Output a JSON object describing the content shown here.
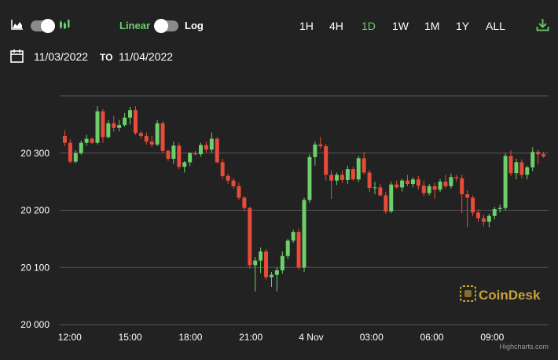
{
  "toolbar": {
    "chart_type_line_icon": "area-chart-icon",
    "chart_type_candle_icon": "candlestick-icon",
    "scale_linear_label": "Linear",
    "scale_log_label": "Log",
    "scale_selected": "Linear",
    "ranges": [
      "1H",
      "4H",
      "1D",
      "1W",
      "1M",
      "1Y",
      "ALL"
    ],
    "range_selected": "1D",
    "download_icon": "download-icon"
  },
  "date_range": {
    "calendar_icon": "calendar-icon",
    "from": "11/03/2022",
    "to_label": "TO",
    "to": "11/04/2022"
  },
  "colors": {
    "background": "#222222",
    "up": "#6ccf6a",
    "down": "#e84b3a",
    "active": "#6ccf6a",
    "grid": "#555555",
    "watermark": "#c9a13b"
  },
  "watermark": {
    "text": "CoinDesk"
  },
  "credits": "Highcharts.com",
  "chart_data": {
    "type": "candlestick",
    "y_ticks": [
      {
        "value": 20000,
        "label": "20 000"
      },
      {
        "value": 20100,
        "label": "20 100"
      },
      {
        "value": 20200,
        "label": "20 200"
      },
      {
        "value": 20300,
        "label": "20 300"
      }
    ],
    "ylim": [
      20000,
      20400
    ],
    "x_ticks": [
      {
        "value": 12,
        "label": "12:00"
      },
      {
        "value": 15,
        "label": "15:00"
      },
      {
        "value": 18,
        "label": "18:00"
      },
      {
        "value": 21,
        "label": "21:00"
      },
      {
        "value": 24,
        "label": "4 Nov"
      },
      {
        "value": 27,
        "label": "03:00"
      },
      {
        "value": 30,
        "label": "06:00"
      },
      {
        "value": 33,
        "label": "09:00"
      }
    ],
    "xlim": [
      11.5,
      35.8
    ],
    "grid": true,
    "candles": [
      [
        20330,
        20340,
        20312,
        20318
      ],
      [
        20318,
        20324,
        20282,
        20285
      ],
      [
        20285,
        20305,
        20282,
        20300
      ],
      [
        20300,
        20322,
        20297,
        20318
      ],
      [
        20318,
        20332,
        20313,
        20325
      ],
      [
        20325,
        20328,
        20316,
        20318
      ],
      [
        20318,
        20382,
        20315,
        20373
      ],
      [
        20373,
        20377,
        20318,
        20328
      ],
      [
        20328,
        20358,
        20325,
        20352
      ],
      [
        20352,
        20365,
        20337,
        20344
      ],
      [
        20344,
        20358,
        20338,
        20349
      ],
      [
        20349,
        20370,
        20346,
        20362
      ],
      [
        20362,
        20381,
        20350,
        20375
      ],
      [
        20375,
        20382,
        20332,
        20335
      ],
      [
        20335,
        20338,
        20325,
        20330
      ],
      [
        20330,
        20336,
        20315,
        20320
      ],
      [
        20320,
        20330,
        20310,
        20315
      ],
      [
        20315,
        20358,
        20312,
        20352
      ],
      [
        20352,
        20356,
        20300,
        20304
      ],
      [
        20304,
        20306,
        20286,
        20290
      ],
      [
        20290,
        20320,
        20281,
        20313
      ],
      [
        20313,
        20318,
        20272,
        20276
      ],
      [
        20276,
        20286,
        20266,
        20284
      ],
      [
        20284,
        20302,
        20277,
        20300
      ],
      [
        20300,
        20304,
        20296,
        20298
      ],
      [
        20298,
        20318,
        20294,
        20314
      ],
      [
        20314,
        20320,
        20301,
        20306
      ],
      [
        20306,
        20336,
        20300,
        20325
      ],
      [
        20325,
        20328,
        20282,
        20284
      ],
      [
        20284,
        20290,
        20255,
        20260
      ],
      [
        20260,
        20264,
        20246,
        20252
      ],
      [
        20252,
        20256,
        20238,
        20242
      ],
      [
        20242,
        20248,
        20218,
        20222
      ],
      [
        20222,
        20225,
        20198,
        20204
      ],
      [
        20204,
        20206,
        20098,
        20104
      ],
      [
        20104,
        20118,
        20058,
        20112
      ],
      [
        20112,
        20135,
        20090,
        20128
      ],
      [
        20128,
        20132,
        20079,
        20083
      ],
      [
        20083,
        20092,
        20066,
        20087
      ],
      [
        20087,
        20100,
        20058,
        20095
      ],
      [
        20095,
        20128,
        20089,
        20120
      ],
      [
        20120,
        20150,
        20115,
        20147
      ],
      [
        20147,
        20166,
        20143,
        20162
      ],
      [
        20162,
        20168,
        20096,
        20100
      ],
      [
        20100,
        20222,
        20092,
        20218
      ],
      [
        20218,
        20298,
        20213,
        20293
      ],
      [
        20293,
        20320,
        20278,
        20315
      ],
      [
        20315,
        20328,
        20308,
        20312
      ],
      [
        20312,
        20316,
        20252,
        20262
      ],
      [
        20262,
        20270,
        20220,
        20252
      ],
      [
        20252,
        20266,
        20244,
        20262
      ],
      [
        20262,
        20270,
        20248,
        20253
      ],
      [
        20253,
        20278,
        20246,
        20272
      ],
      [
        20272,
        20276,
        20252,
        20254
      ],
      [
        20254,
        20295,
        20249,
        20291
      ],
      [
        20291,
        20302,
        20262,
        20266
      ],
      [
        20266,
        20271,
        20232,
        20239
      ],
      [
        20239,
        20250,
        20228,
        20240
      ],
      [
        20240,
        20246,
        20224,
        20226
      ],
      [
        20226,
        20232,
        20194,
        20198
      ],
      [
        20198,
        20250,
        20195,
        20245
      ],
      [
        20245,
        20252,
        20238,
        20240
      ],
      [
        20240,
        20255,
        20233,
        20252
      ],
      [
        20252,
        20262,
        20242,
        20246
      ],
      [
        20246,
        20258,
        20240,
        20254
      ],
      [
        20254,
        20260,
        20236,
        20243
      ],
      [
        20243,
        20252,
        20225,
        20230
      ],
      [
        20230,
        20246,
        20226,
        20242
      ],
      [
        20242,
        20248,
        20220,
        20236
      ],
      [
        20236,
        20255,
        20232,
        20250
      ],
      [
        20250,
        20262,
        20238,
        20242
      ],
      [
        20242,
        20264,
        20238,
        20258
      ],
      [
        20258,
        20262,
        20250,
        20256
      ],
      [
        20256,
        20262,
        20195,
        20228
      ],
      [
        20228,
        20235,
        20170,
        20222
      ],
      [
        20222,
        20226,
        20190,
        20196
      ],
      [
        20196,
        20202,
        20180,
        20186
      ],
      [
        20186,
        20192,
        20172,
        20180
      ],
      [
        20180,
        20194,
        20170,
        20190
      ],
      [
        20190,
        20206,
        20184,
        20202
      ],
      [
        20202,
        20210,
        20196,
        20204
      ],
      [
        20204,
        20300,
        20200,
        20295
      ],
      [
        20295,
        20305,
        20260,
        20265
      ],
      [
        20265,
        20290,
        20254,
        20284
      ],
      [
        20284,
        20289,
        20256,
        20262
      ],
      [
        20262,
        20278,
        20254,
        20275
      ],
      [
        20275,
        20310,
        20268,
        20302
      ],
      [
        20302,
        20306,
        20280,
        20298
      ],
      [
        20298,
        20302,
        20292,
        20294
      ]
    ]
  }
}
